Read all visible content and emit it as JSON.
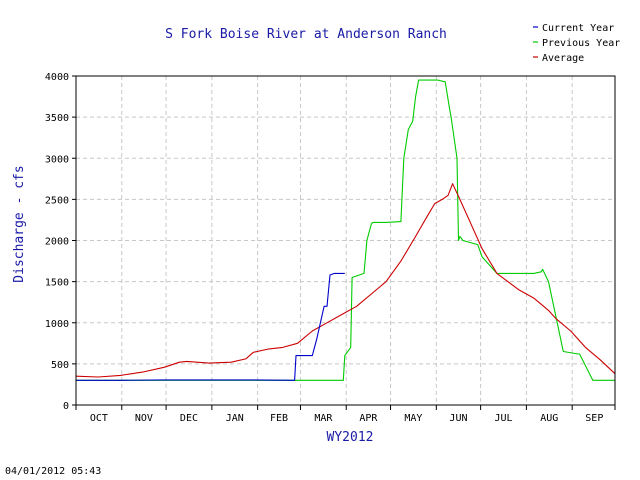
{
  "chart_data": {
    "type": "line",
    "title": "S Fork Boise River at Anderson Ranch",
    "xlabel": "WY2012",
    "ylabel": "Discharge - cfs",
    "ylim": [
      0,
      4000
    ],
    "xlim": [
      0,
      365
    ],
    "yticks": [
      0,
      500,
      1000,
      1500,
      2000,
      2500,
      3000,
      3500,
      4000
    ],
    "month_labels": [
      "OCT",
      "NOV",
      "DEC",
      "JAN",
      "FEB",
      "MAR",
      "APR",
      "MAY",
      "JUN",
      "JUL",
      "AUG",
      "SEP"
    ],
    "grid": true,
    "legend_position": "top-right",
    "series": [
      {
        "name": "Current Year",
        "color": "#0000cc",
        "x": [
          0,
          30,
          60,
          90,
          120,
          148,
          149,
          160,
          163,
          168,
          170,
          172,
          175,
          178,
          180,
          182
        ],
        "y": [
          300,
          300,
          305,
          305,
          305,
          300,
          600,
          600,
          800,
          1200,
          1200,
          1580,
          1600,
          1600,
          1600,
          1600
        ]
      },
      {
        "name": "Previous Year",
        "color": "#00cc00",
        "x": [
          0,
          60,
          120,
          181,
          182,
          186,
          187,
          195,
          197,
          200,
          201,
          210,
          220,
          222,
          225,
          228,
          230,
          232,
          245,
          250,
          253,
          254,
          258,
          259,
          260,
          262,
          272,
          275,
          285,
          290,
          300,
          310,
          315,
          316,
          320,
          330,
          340,
          341,
          350,
          365
        ],
        "y": [
          300,
          300,
          300,
          300,
          600,
          700,
          1550,
          1600,
          2000,
          2200,
          2220,
          2220,
          2230,
          3000,
          3350,
          3450,
          3750,
          3950,
          3950,
          3930,
          3600,
          3500,
          3000,
          2000,
          2050,
          2000,
          1950,
          1800,
          1600,
          1600,
          1600,
          1600,
          1620,
          1650,
          1500,
          650,
          620,
          620,
          300,
          300
        ]
      },
      {
        "name": "Average",
        "color": "#cc0000",
        "x": [
          0,
          15,
          30,
          45,
          60,
          70,
          75,
          90,
          105,
          115,
          120,
          130,
          140,
          150,
          160,
          170,
          180,
          190,
          200,
          210,
          220,
          230,
          238,
          243,
          248,
          252,
          255,
          260,
          265,
          270,
          275,
          285,
          300,
          310,
          320,
          325,
          335,
          345,
          355,
          365
        ],
        "y": [
          350,
          340,
          360,
          400,
          460,
          520,
          530,
          510,
          520,
          560,
          640,
          680,
          700,
          750,
          900,
          1000,
          1100,
          1200,
          1350,
          1500,
          1750,
          2050,
          2300,
          2450,
          2500,
          2550,
          2690,
          2500,
          2300,
          2100,
          1900,
          1600,
          1400,
          1300,
          1150,
          1050,
          900,
          700,
          550,
          380
        ]
      }
    ]
  },
  "timestamp": "04/01/2012 05:43"
}
